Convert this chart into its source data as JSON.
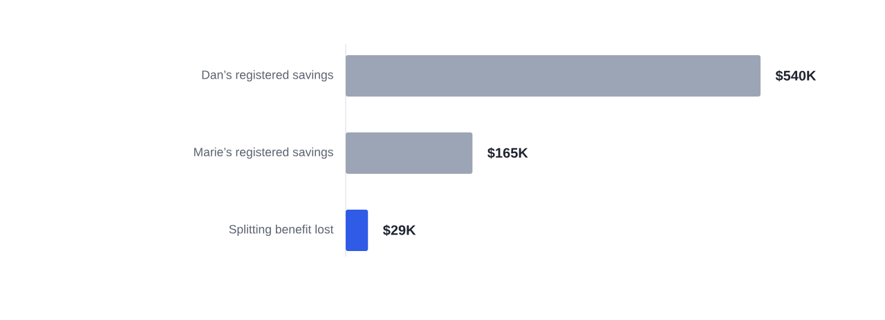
{
  "chart_data": {
    "type": "bar",
    "orientation": "horizontal",
    "categories": [
      "Dan’s registered savings",
      "Marie’s registered savings",
      "Splitting benefit lost"
    ],
    "values": [
      540,
      165,
      29
    ],
    "colors": [
      "#9ca5b5",
      "#9ca5b5",
      "#2f5be6"
    ],
    "value_labels": [
      "$540K",
      "$165K",
      "$29K"
    ]
  }
}
